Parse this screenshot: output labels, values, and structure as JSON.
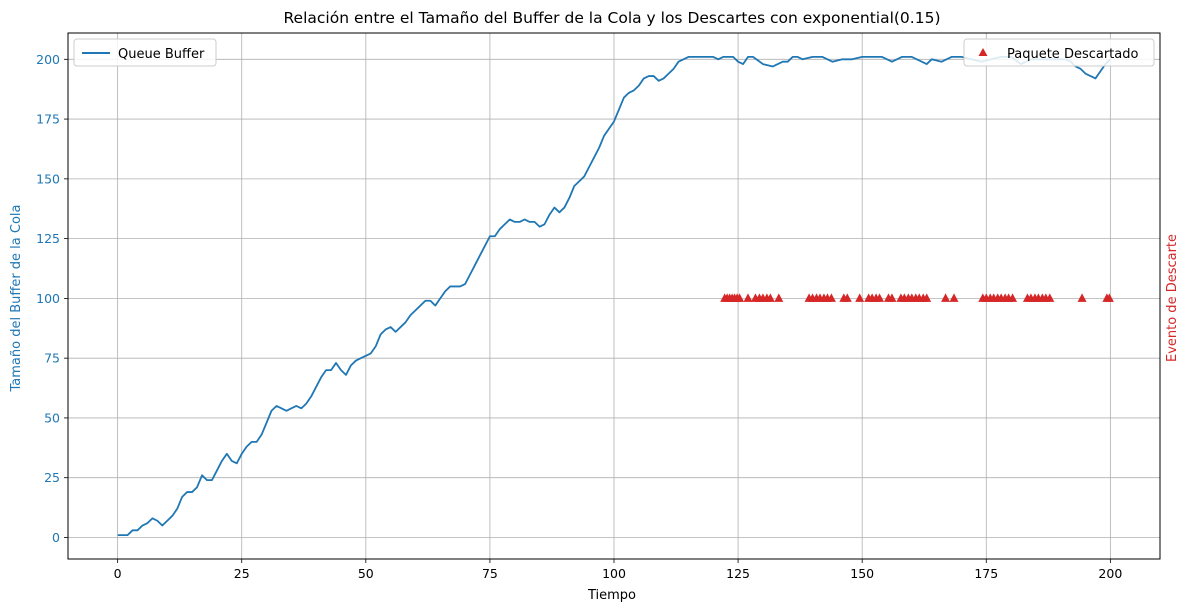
{
  "chart_data": {
    "type": "line",
    "title": "Relación entre el Tamaño del Buffer de la Cola y los Descartes con exponential(0.15)",
    "xlabel": "Tiempo",
    "ylabel": "Tamaño del Buffer de la Cola",
    "ylabel_right": "Evento de Descarte",
    "xlim": [
      -10,
      210
    ],
    "ylim": [
      -9,
      211
    ],
    "x_ticks": [
      "0",
      "25",
      "50",
      "75",
      "100",
      "125",
      "150",
      "175",
      "200"
    ],
    "y_ticks": [
      "0",
      "25",
      "50",
      "75",
      "100",
      "125",
      "150",
      "175",
      "200"
    ],
    "grid": true,
    "colors": {
      "buffer": "#1f77b4",
      "drops": "#d62728",
      "grid": "#b0b0b0"
    },
    "legend_left": {
      "placement": "upper-left",
      "label": "Queue Buffer"
    },
    "legend_right": {
      "placement": "upper-right",
      "label": "Paquete Descartado"
    },
    "series": [
      {
        "name": "Queue Buffer",
        "x": [
          0,
          2,
          3,
          4,
          5,
          6,
          7,
          8,
          9,
          10,
          11,
          12,
          13,
          14,
          15,
          16,
          17,
          18,
          19,
          20,
          21,
          22,
          23,
          24,
          25,
          26,
          27,
          28,
          29,
          30,
          31,
          32,
          33,
          34,
          35,
          36,
          37,
          38,
          39,
          40,
          41,
          42,
          43,
          44,
          45,
          46,
          47,
          48,
          49,
          50,
          51,
          52,
          53,
          54,
          55,
          56,
          57,
          58,
          59,
          60,
          61,
          62,
          63,
          64,
          65,
          66,
          67,
          68,
          69,
          70,
          71,
          72,
          73,
          74,
          75,
          76,
          77,
          78,
          79,
          80,
          81,
          82,
          83,
          84,
          85,
          86,
          87,
          88,
          89,
          90,
          91,
          92,
          93,
          94,
          95,
          96,
          97,
          98,
          99,
          100,
          101,
          102,
          103,
          104,
          105,
          106,
          107,
          108,
          109,
          110,
          111,
          112,
          113,
          114,
          115,
          116,
          117,
          118,
          119,
          120,
          121,
          122,
          124,
          125,
          126,
          127,
          128,
          130,
          132,
          134,
          135,
          136,
          137,
          138,
          140,
          142,
          144,
          146,
          148,
          150,
          152,
          154,
          156,
          158,
          160,
          162,
          163,
          164,
          166,
          168,
          170,
          172,
          174,
          176,
          178,
          180,
          182,
          184,
          186,
          188,
          190,
          191,
          192,
          193,
          194,
          195,
          196,
          197,
          198,
          199,
          200
        ],
        "y": [
          1,
          1,
          3,
          3,
          5,
          6,
          8,
          7,
          5,
          7,
          9,
          12,
          17,
          19,
          19,
          21,
          26,
          24,
          24,
          28,
          32,
          35,
          32,
          31,
          35,
          38,
          40,
          40,
          43,
          48,
          53,
          55,
          54,
          53,
          54,
          55,
          54,
          56,
          59,
          63,
          67,
          70,
          70,
          73,
          70,
          68,
          72,
          74,
          75,
          76,
          77,
          80,
          85,
          87,
          88,
          86,
          88,
          90,
          93,
          95,
          97,
          99,
          99,
          97,
          100,
          103,
          105,
          105,
          105,
          106,
          110,
          114,
          118,
          122,
          126,
          126,
          129,
          131,
          133,
          132,
          132,
          133,
          132,
          132,
          130,
          131,
          135,
          138,
          136,
          138,
          142,
          147,
          149,
          151,
          155,
          159,
          163,
          168,
          171,
          174,
          179,
          184,
          186,
          187,
          189,
          192,
          193,
          193,
          191,
          192,
          194,
          196,
          199,
          200,
          201,
          201,
          201,
          201,
          201,
          201,
          200,
          201,
          201,
          199,
          198,
          201,
          201,
          198,
          197,
          199,
          199,
          201,
          201,
          200,
          201,
          201,
          199,
          200,
          200,
          201,
          201,
          201,
          199,
          201,
          201,
          199,
          198,
          200,
          199,
          201,
          201,
          200,
          199,
          200,
          201,
          201,
          198,
          200,
          200,
          200,
          200,
          200,
          199,
          197,
          196,
          194,
          193,
          192,
          195,
          198,
          200
        ]
      },
      {
        "name": "Paquete Descartado",
        "marker": "triangle",
        "y_value": 100,
        "x": [
          122.3,
          122.8,
          123.3,
          123.8,
          124.3,
          124.8,
          125.3,
          127,
          128.5,
          129.3,
          130,
          130.8,
          131.5,
          133.2,
          139.3,
          140,
          140.8,
          141.5,
          142.3,
          143,
          143.8,
          146.3,
          147,
          149.5,
          151.3,
          152,
          152.8,
          153.5,
          155.3,
          156,
          157.8,
          158.5,
          159.3,
          160,
          160.8,
          161.5,
          162.3,
          163,
          166.8,
          168.5,
          174.3,
          175,
          175.8,
          176.5,
          177.3,
          178,
          178.8,
          179.5,
          180.3,
          183.3,
          184,
          184.8,
          185.5,
          186.3,
          187,
          187.8,
          194.3,
          199.3,
          199.8
        ]
      }
    ]
  }
}
